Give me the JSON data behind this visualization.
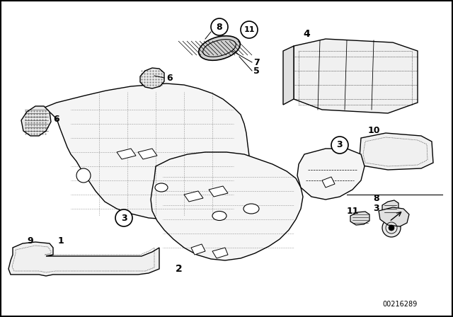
{
  "bg_color": "#ffffff",
  "part_number": "00216289",
  "lw": 1.0,
  "thin": 0.5,
  "text_color": "#000000"
}
